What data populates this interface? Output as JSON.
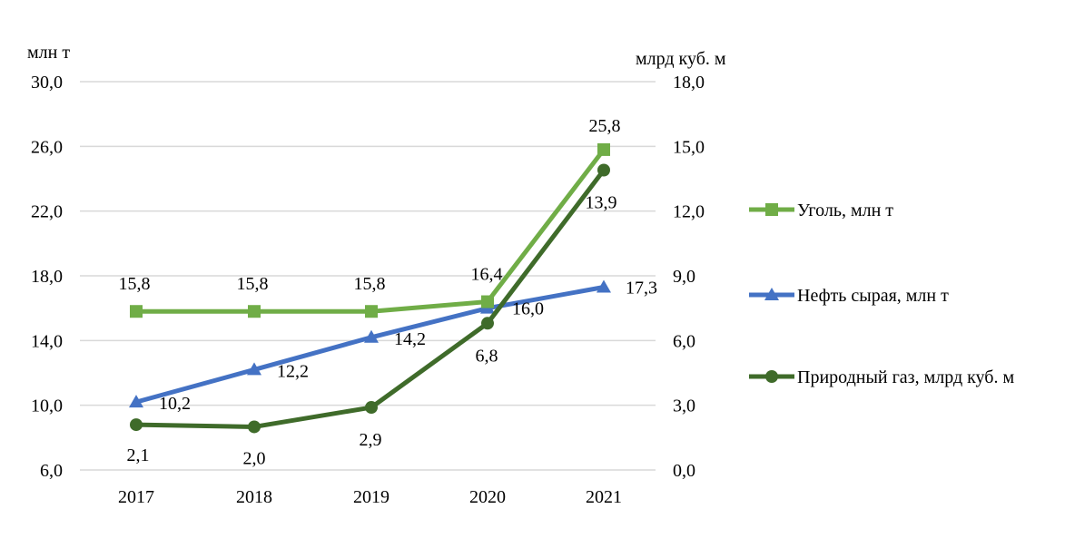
{
  "chart_data": {
    "type": "line",
    "title": "",
    "xlabel": "",
    "y_left_label": "млн т",
    "y_right_label": "млрд куб. м",
    "categories": [
      "2017",
      "2018",
      "2019",
      "2020",
      "2021"
    ],
    "y_left": {
      "min": 6.0,
      "max": 30.0,
      "ticks": [
        "6,0",
        "10,0",
        "14,0",
        "18,0",
        "22,0",
        "26,0",
        "30,0"
      ],
      "tick_values": [
        6,
        10,
        14,
        18,
        22,
        26,
        30
      ]
    },
    "y_right": {
      "min": 0.0,
      "max": 18.0,
      "ticks": [
        "0,0",
        "3,0",
        "6,0",
        "9,0",
        "12,0",
        "15,0",
        "18,0"
      ],
      "tick_values": [
        0,
        3,
        6,
        9,
        12,
        15,
        18
      ]
    },
    "grid": true,
    "legend_position": "right",
    "series": [
      {
        "name": "Уголь, млн т",
        "axis": "left",
        "marker": "square",
        "color": "#70ad47",
        "values": [
          15.8,
          15.8,
          15.8,
          16.4,
          25.8
        ],
        "labels": [
          "15,8",
          "15,8",
          "15,8",
          "16,4",
          "25,8"
        ]
      },
      {
        "name": "Нефть сырая, млн т",
        "axis": "left",
        "marker": "triangle",
        "color": "#4472c4",
        "values": [
          10.2,
          12.2,
          14.2,
          16.0,
          17.3
        ],
        "labels": [
          "10,2",
          "12,2",
          "14,2",
          "16,0",
          "17,3"
        ]
      },
      {
        "name": "Природный газ, млрд куб. м",
        "axis": "right",
        "marker": "circle",
        "color": "#3f6b2a",
        "values": [
          2.1,
          2.0,
          2.9,
          6.8,
          13.9
        ],
        "labels": [
          "2,1",
          "2,0",
          "2,9",
          "6,8",
          "13,9"
        ]
      }
    ]
  }
}
